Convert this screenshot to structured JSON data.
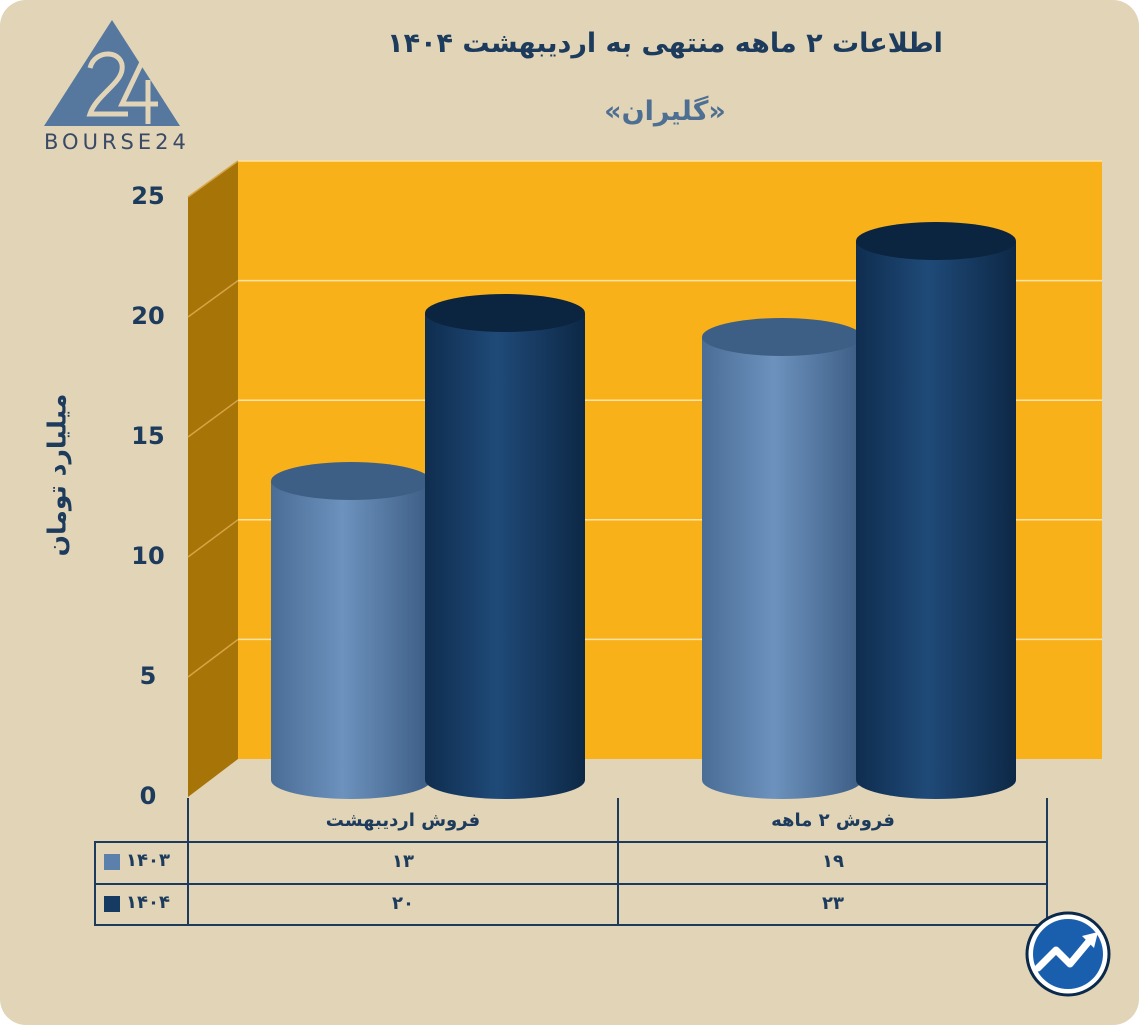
{
  "brand": {
    "name": "BOURSE24"
  },
  "icons": {
    "logo": "bourse24-triangle-logo-icon",
    "corner": "trend-arrow-icon"
  },
  "colors": {
    "background": "#e1d4b7",
    "plot_back": "#f9b11a",
    "plot_side": "#a77408",
    "series_1403": "#5b80ab",
    "series_1404": "#163b63",
    "text": "#1d3b5c"
  },
  "chart_data": {
    "type": "bar",
    "title": "اطلاعات ۲ ماهه منتهی به اردیبهشت ۱۴۰۴",
    "subtitle": "«گلیران»",
    "ylabel": "میلیارد تومان",
    "ylim": [
      0,
      25
    ],
    "yticks": [
      "0",
      "5",
      "10",
      "15",
      "20",
      "25"
    ],
    "categories": [
      "فروش اردیبهشت",
      "فروش ۲ ماهه"
    ],
    "series": [
      {
        "name": "۱۴۰۳",
        "values": [
          13,
          19
        ],
        "labels": [
          "۱۳",
          "۱۹"
        ],
        "color": "#5b80ab"
      },
      {
        "name": "۱۴۰۴",
        "values": [
          20,
          23
        ],
        "labels": [
          "۲۰",
          "۲۳"
        ],
        "color": "#163b63"
      }
    ],
    "grid": true,
    "legend": "table-left"
  }
}
